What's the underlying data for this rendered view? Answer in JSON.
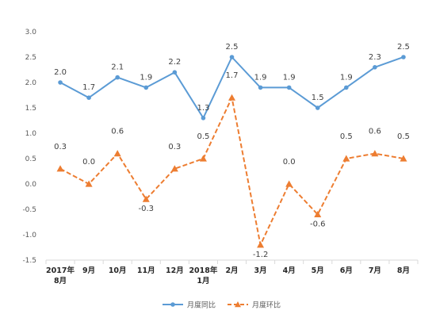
{
  "chart_data": {
    "type": "line",
    "title": "",
    "xlabel": "",
    "ylabel": "",
    "ylim": [
      -1.5,
      3.0
    ],
    "ytick_step": 0.5,
    "yticks": [
      "3.0",
      "2.5",
      "2.0",
      "1.5",
      "1.0",
      "0.5",
      "0.0",
      "-0.5",
      "-1.0",
      "-1.5"
    ],
    "grid": false,
    "legend_position": "bottom",
    "categories": [
      {
        "line1": "2017年",
        "line2": "8月"
      },
      {
        "line1": "9月",
        "line2": ""
      },
      {
        "line1": "10月",
        "line2": ""
      },
      {
        "line1": "11月",
        "line2": ""
      },
      {
        "line1": "12月",
        "line2": ""
      },
      {
        "line1": "2018年",
        "line2": "1月"
      },
      {
        "line1": "2月",
        "line2": ""
      },
      {
        "line1": "3月",
        "line2": ""
      },
      {
        "line1": "4月",
        "line2": ""
      },
      {
        "line1": "5月",
        "line2": ""
      },
      {
        "line1": "6月",
        "line2": ""
      },
      {
        "line1": "7月",
        "line2": ""
      },
      {
        "line1": "8月",
        "line2": ""
      }
    ],
    "series": [
      {
        "name": "月度同比",
        "color": "#5b9bd5",
        "style": "solid",
        "marker": "circle",
        "values": [
          2.0,
          1.7,
          2.1,
          1.9,
          2.2,
          1.3,
          2.5,
          1.9,
          1.9,
          1.5,
          1.9,
          2.3,
          2.5
        ],
        "labels": [
          "2.0",
          "1.7",
          "2.1",
          "1.9",
          "2.2",
          "1.3",
          "2.5",
          "1.9",
          "1.9",
          "1.5",
          "1.9",
          "2.3",
          "2.5"
        ]
      },
      {
        "name": "月度环比",
        "color": "#ed7d31",
        "style": "dashed",
        "marker": "triangle",
        "values": [
          0.3,
          0.0,
          0.6,
          -0.3,
          0.3,
          0.5,
          1.7,
          -1.2,
          0.0,
          -0.6,
          0.5,
          0.6,
          0.5
        ],
        "labels": [
          "0.3",
          "0.0",
          "0.6",
          "-0.3",
          "0.3",
          "0.5",
          "1.7",
          "-1.2",
          "0.0",
          "-0.6",
          "0.5",
          "0.6",
          "0.5"
        ]
      }
    ]
  }
}
